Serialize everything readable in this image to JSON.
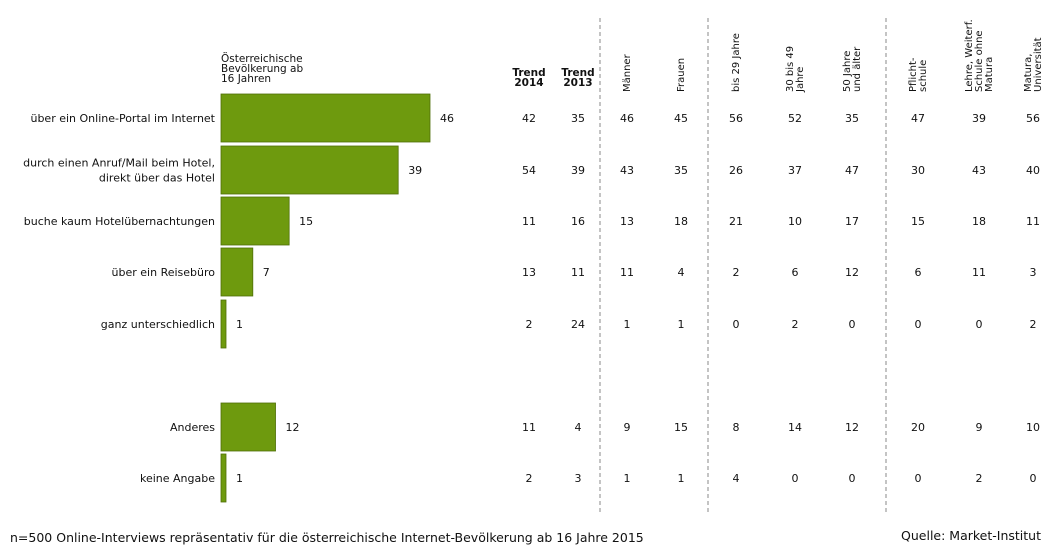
{
  "chart_data": {
    "type": "bar",
    "orientation": "horizontal",
    "bar_series_label": "Österreichische Bevölkerung ab 16 Jahren",
    "bar_series_label_lines": [
      "Österreichische",
      "Bevölkerung ab",
      "16 Jahren"
    ],
    "categories": [
      [
        "über ein Online-Portal im Internet"
      ],
      [
        "durch einen Anruf/Mail beim Hotel,",
        "direkt über das Hotel"
      ],
      [
        "buche kaum Hotelübernachtungen"
      ],
      [
        "über ein Reisebüro"
      ],
      [
        "ganz unterschiedlich"
      ],
      [
        "Anderes"
      ],
      [
        "keine Angabe"
      ]
    ],
    "values": [
      46,
      39,
      15,
      7,
      1,
      12,
      1
    ],
    "bar_color": "#6e9a0e",
    "table_columns": [
      {
        "label": [
          "Trend",
          "2014"
        ],
        "rotated": false,
        "values": [
          42,
          54,
          11,
          13,
          2,
          11,
          2
        ]
      },
      {
        "label": [
          "Trend",
          "2013"
        ],
        "rotated": false,
        "values": [
          35,
          39,
          16,
          11,
          24,
          4,
          3
        ]
      },
      {
        "label": [
          "Männer"
        ],
        "rotated": true,
        "values": [
          46,
          43,
          13,
          11,
          1,
          9,
          1
        ]
      },
      {
        "label": [
          "Frauen"
        ],
        "rotated": true,
        "values": [
          45,
          35,
          18,
          4,
          1,
          15,
          1
        ]
      },
      {
        "label": [
          "bis 29 Jahre"
        ],
        "rotated": true,
        "values": [
          56,
          26,
          21,
          2,
          0,
          8,
          4
        ]
      },
      {
        "label": [
          "30 bis 49",
          "Jahre"
        ],
        "rotated": true,
        "values": [
          52,
          37,
          10,
          6,
          2,
          14,
          0
        ]
      },
      {
        "label": [
          "50 Jahre",
          "und älter"
        ],
        "rotated": true,
        "values": [
          35,
          47,
          17,
          12,
          0,
          12,
          0
        ]
      },
      {
        "label": [
          "Pflicht-",
          "schule"
        ],
        "rotated": true,
        "values": [
          47,
          30,
          15,
          6,
          0,
          20,
          0
        ]
      },
      {
        "label": [
          "Lehre, Weiterf.",
          "Schule ohne",
          "Matura"
        ],
        "rotated": true,
        "values": [
          39,
          43,
          18,
          11,
          0,
          9,
          2
        ]
      },
      {
        "label": [
          "Matura,",
          "Universität"
        ],
        "rotated": true,
        "values": [
          56,
          40,
          11,
          3,
          2,
          10,
          0
        ]
      }
    ]
  },
  "footnote": "n=500 Online-Interviews repräsentativ für die österreichische Internet-Bevölkerung ab 16 Jahre 2015",
  "source": "Quelle: Market-Institut"
}
